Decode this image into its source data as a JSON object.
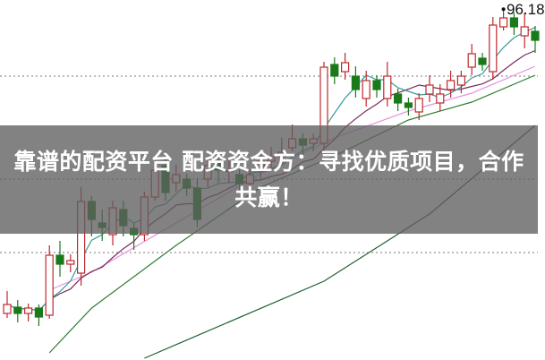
{
  "headline": "靠谱的配资平台 配资资金方：寻找优质项目，合作共赢！",
  "chart_data": {
    "type": "candlestick",
    "title": "",
    "xlabel": "",
    "ylabel": "",
    "ylim": [
      57.2,
      97.4
    ],
    "grid": "dotted horizontal",
    "grid_levels": [
      88.9,
      77.4,
      69.2
    ],
    "colors": {
      "up": "#c0282d",
      "down": "#1a7a1a",
      "ma_short": "#3a9a9a",
      "ma_mid": "#7a2a5a",
      "ma_pink": "#e68fe0",
      "ma_green": "#2e7d32",
      "ma_darkgreen": "#1f5f2f"
    },
    "max_annotation": "96.18",
    "candles": [
      [
        62.4,
        63.4,
        64.9,
        61.9
      ],
      [
        63.1,
        62.4,
        63.9,
        61.4
      ],
      [
        62.4,
        63.0,
        63.5,
        61.5
      ],
      [
        63.0,
        62.0,
        63.4,
        61.0
      ],
      [
        62.2,
        68.9,
        70.0,
        61.8
      ],
      [
        68.9,
        67.9,
        70.5,
        66.5
      ],
      [
        67.9,
        68.3,
        69.0,
        67.0
      ],
      [
        66.9,
        74.9,
        76.5,
        65.5
      ],
      [
        74.9,
        72.9,
        75.5,
        71.0
      ],
      [
        72.5,
        72.0,
        74.0,
        70.5
      ],
      [
        71.2,
        74.2,
        75.0,
        70.0
      ],
      [
        74.0,
        72.2,
        75.0,
        71.0
      ],
      [
        71.9,
        71.2,
        72.5,
        69.5
      ],
      [
        71.2,
        75.4,
        76.0,
        70.5
      ],
      [
        75.4,
        78.4,
        80.0,
        75.0
      ],
      [
        78.9,
        75.9,
        80.5,
        75.0
      ],
      [
        77.0,
        77.9,
        79.0,
        76.0
      ],
      [
        77.4,
        76.4,
        78.0,
        75.5
      ],
      [
        76.4,
        72.9,
        77.5,
        72.0
      ],
      [
        77.4,
        78.9,
        80.0,
        76.5
      ],
      [
        79.4,
        78.4,
        80.5,
        77.0
      ],
      [
        78.4,
        78.4,
        79.5,
        77.0
      ],
      [
        77.9,
        76.9,
        78.5,
        76.0
      ],
      [
        76.9,
        77.9,
        78.5,
        76.0
      ],
      [
        78.4,
        79.4,
        80.5,
        77.5
      ],
      [
        79.4,
        79.9,
        81.0,
        78.5
      ],
      [
        79.9,
        80.4,
        82.0,
        79.0
      ],
      [
        80.9,
        81.9,
        83.5,
        80.5
      ],
      [
        81.9,
        81.2,
        82.5,
        80.0
      ],
      [
        81.4,
        81.9,
        82.5,
        80.5
      ],
      [
        81.4,
        89.9,
        90.5,
        80.5
      ],
      [
        90.2,
        88.9,
        91.0,
        88.0
      ],
      [
        89.4,
        90.4,
        91.5,
        88.5
      ],
      [
        88.9,
        87.4,
        90.0,
        86.5
      ],
      [
        86.4,
        88.4,
        89.5,
        85.5
      ],
      [
        88.4,
        87.4,
        89.0,
        86.5
      ],
      [
        86.4,
        88.9,
        90.5,
        85.5
      ],
      [
        86.9,
        85.9,
        87.5,
        85.0
      ],
      [
        85.9,
        85.4,
        86.5,
        84.5
      ],
      [
        84.9,
        86.4,
        87.0,
        84.0
      ],
      [
        86.9,
        87.9,
        89.0,
        86.0
      ],
      [
        85.9,
        86.9,
        88.0,
        85.0
      ],
      [
        87.4,
        88.4,
        89.5,
        86.5
      ],
      [
        87.9,
        88.9,
        89.5,
        87.0
      ],
      [
        89.9,
        91.4,
        92.5,
        89.0
      ],
      [
        90.9,
        90.2,
        91.5,
        89.5
      ],
      [
        89.4,
        94.6,
        95.5,
        88.5
      ],
      [
        94.4,
        95.4,
        96.18,
        94.0
      ],
      [
        95.4,
        94.4,
        96.0,
        93.5
      ],
      [
        93.4,
        94.4,
        96.0,
        92.0
      ],
      [
        93.9,
        92.9,
        94.5,
        91.5
      ]
    ],
    "candle_fields": [
      "open",
      "close",
      "high",
      "low"
    ],
    "long_lines": [
      {
        "key": "ma_pink",
        "points": [
          [
            4,
            65
          ],
          [
            8,
            67
          ],
          [
            16,
            72.5
          ],
          [
            24,
            78
          ],
          [
            31,
            82
          ],
          [
            38,
            85
          ],
          [
            44,
            87
          ],
          [
            50,
            90
          ]
        ]
      },
      {
        "key": "ma_green",
        "points": [
          [
            4,
            58
          ],
          [
            8,
            63
          ],
          [
            16,
            70
          ],
          [
            24,
            76.5
          ],
          [
            31,
            80
          ],
          [
            38,
            84
          ],
          [
            44,
            86
          ],
          [
            50,
            89
          ]
        ]
      },
      {
        "key": "ma_darkgreen",
        "points": [
          [
            13,
            57.4
          ],
          [
            30,
            66
          ],
          [
            40,
            73.5
          ],
          [
            50,
            83.4
          ]
        ]
      }
    ]
  }
}
